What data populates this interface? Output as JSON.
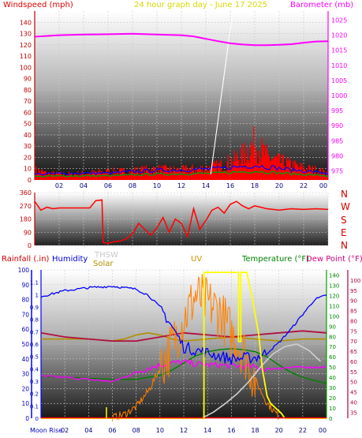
{
  "header": {
    "left_title": "Windspeed (mph)",
    "center_title": "24 hour graph day - June 17 2025",
    "right_title": "Barometer (mb)"
  },
  "direction_letters": [
    "N",
    "W",
    "S",
    "E",
    "N"
  ],
  "bottom_header": {
    "rainfall": "Rainfall (.in)",
    "humidity": "Humidity",
    "thsw": "THSW",
    "solar": "Solar",
    "uv": "UV",
    "temperature": "Temperature (°F)",
    "dewpoint": "Dew Point (°F)"
  },
  "moon_label": "Moon Rise",
  "colors": {
    "wind": "#ff0000",
    "gust": "#0000ff",
    "green": "#00a000",
    "barometer": "#ff00ff",
    "direction": "#ff0000",
    "humidity": "#0000ff",
    "temperature": "#008000",
    "dewpoint": "#ff00ff",
    "solar": "#ff8000",
    "uv": "#ffff00",
    "thsw": "#b01040",
    "moon": "#d0d0d0",
    "olive": "#b09000"
  },
  "chart_data": [
    {
      "type": "line",
      "name": "wind",
      "x_ticks": [
        "02",
        "04",
        "06",
        "08",
        "10",
        "12",
        "14",
        "16",
        "18",
        "20",
        "22",
        "00"
      ],
      "left_axis": {
        "label": "Windspeed (mph)",
        "range": [
          0,
          150
        ],
        "ticks": [
          "0",
          "10",
          "20",
          "30",
          "40",
          "50",
          "60",
          "70",
          "80",
          "90",
          "100",
          "110",
          "120",
          "130",
          "140"
        ]
      },
      "right_axis": {
        "label": "Barometer (mb)",
        "range": [
          972,
          1028
        ],
        "ticks": [
          "975",
          "980",
          "985",
          "990",
          "995",
          "1000",
          "1005",
          "1010",
          "1015",
          "1020",
          "1025"
        ]
      },
      "barometer": {
        "x": [
          0,
          2,
          4,
          6,
          8,
          10,
          12,
          13,
          14,
          15,
          16,
          17,
          18,
          19,
          20,
          21,
          22,
          23,
          24
        ],
        "y": [
          1019.5,
          1020,
          1020.2,
          1020.3,
          1020.5,
          1020.2,
          1020,
          1019.6,
          1018.8,
          1018,
          1017.3,
          1016.9,
          1016.7,
          1016.7,
          1016.8,
          1017,
          1017.5,
          1017.9,
          1018
        ]
      },
      "wind_speed_envelope": {
        "x": [
          0,
          1,
          2,
          3,
          4,
          5,
          6,
          7,
          8,
          9,
          10,
          11,
          12,
          13,
          14,
          15,
          16,
          17,
          18,
          19,
          20,
          21,
          22,
          23,
          24
        ],
        "y": [
          12,
          8,
          7,
          7,
          8,
          9,
          10,
          10,
          11,
          12,
          13,
          12,
          12,
          13,
          14,
          17,
          22,
          30,
          45,
          28,
          22,
          18,
          14,
          12,
          8
        ]
      },
      "gust_band": {
        "x": [
          0,
          3,
          6,
          9,
          12,
          15,
          18,
          21,
          24
        ],
        "y": [
          5,
          6,
          6,
          8,
          9,
          10,
          13,
          9,
          6
        ]
      }
    },
    {
      "type": "line",
      "name": "wind_direction",
      "left_axis": {
        "range": [
          0,
          360
        ],
        "ticks": [
          "0",
          "90",
          "180",
          "270",
          "360"
        ]
      },
      "x": [
        0,
        0.5,
        1,
        1.5,
        2,
        2.5,
        3,
        3.5,
        4,
        4.5,
        5,
        5.5,
        5.6,
        6,
        6.5,
        7,
        7.5,
        8,
        8.5,
        9,
        9.5,
        10,
        10.5,
        11,
        11.5,
        12,
        12.5,
        13,
        13.5,
        14,
        14.5,
        15,
        15.5,
        16,
        16.5,
        17,
        17.5,
        18,
        19,
        20,
        21,
        22,
        23,
        24
      ],
      "y": [
        300,
        240,
        260,
        250,
        255,
        255,
        255,
        255,
        255,
        255,
        305,
        310,
        20,
        15,
        25,
        30,
        45,
        80,
        150,
        110,
        70,
        120,
        190,
        90,
        180,
        150,
        60,
        250,
        110,
        170,
        240,
        260,
        220,
        280,
        300,
        270,
        250,
        270,
        250,
        240,
        250,
        245,
        250,
        245
      ]
    },
    {
      "type": "line",
      "name": "environment",
      "left_axis": {
        "label": "Rainfall (.in)",
        "range": [
          0,
          1.2
        ],
        "ticks": [
          "0",
          "0.1",
          "0.2",
          "0.3",
          "0.4",
          "0.5",
          "0.6",
          "0.7",
          "0.8",
          "0.9",
          "1",
          "1.1"
        ]
      },
      "humidity_axis": {
        "label": "Humidity",
        "range": [
          0,
          100
        ],
        "ticks": [
          "0",
          "10",
          "20",
          "30",
          "40",
          "50",
          "60",
          "70",
          "80",
          "90",
          "100"
        ]
      },
      "temp_axis": {
        "label": "Temperature (°F)",
        "range": [
          0,
          145
        ],
        "ticks": [
          "0",
          "10",
          "20",
          "30",
          "40",
          "50",
          "60",
          "70",
          "80",
          "90",
          "100",
          "110",
          "120",
          "130",
          "140"
        ]
      },
      "dew_axis": {
        "label": "Dew Point (°F)",
        "range": [
          32,
          105
        ],
        "ticks": [
          "35",
          "40",
          "45",
          "50",
          "55",
          "60",
          "65",
          "70",
          "75",
          "80",
          "85",
          "90",
          "95",
          "100"
        ]
      },
      "humidity": {
        "x": [
          0,
          2,
          4,
          6,
          7,
          8,
          9,
          10,
          11,
          12,
          13,
          14,
          16,
          18,
          19,
          20,
          21,
          22,
          23,
          24
        ],
        "y": [
          82,
          86,
          88,
          89,
          88,
          87,
          83,
          75,
          62,
          48,
          46,
          44,
          40,
          41,
          44,
          51,
          60,
          70,
          80,
          83
        ]
      },
      "temperature": {
        "x": [
          0,
          2,
          4,
          6,
          8,
          10,
          11,
          12,
          13,
          14,
          15,
          16,
          17,
          18,
          19,
          20,
          21,
          22,
          24
        ],
        "y": [
          41,
          40,
          39,
          38,
          38,
          42,
          47,
          54,
          61,
          65,
          67,
          68,
          67,
          65,
          60,
          52,
          45,
          40,
          34
        ]
      },
      "dewpoint": {
        "x": [
          0,
          2,
          4,
          6,
          7,
          8,
          9,
          10,
          11,
          12,
          13,
          14,
          15,
          16,
          17,
          18,
          19,
          20,
          22,
          24
        ],
        "y": [
          41,
          40,
          38,
          36,
          40,
          45,
          49,
          52,
          54,
          55,
          53,
          52,
          52,
          51,
          51,
          50,
          48,
          49,
          50,
          50
        ]
      },
      "thsw": {
        "x": [
          0,
          2,
          4,
          6,
          8,
          10,
          12,
          14,
          16,
          18,
          20,
          22,
          24
        ],
        "y": [
          74,
          72,
          71,
          70,
          70,
          72,
          74,
          73,
          72,
          73,
          74,
          75,
          74
        ]
      },
      "olive_temp": {
        "x": [
          0,
          4,
          6,
          7,
          8,
          9,
          10,
          11,
          12,
          14,
          16,
          18,
          20,
          22,
          24
        ],
        "y": [
          71,
          71,
          70,
          71,
          73,
          74,
          73,
          71,
          70,
          71,
          72,
          71,
          70,
          71,
          71
        ]
      },
      "solar": {
        "x": [
          6,
          7,
          8,
          9,
          10,
          11,
          12,
          13,
          14,
          15,
          16,
          17,
          18,
          19,
          20
        ],
        "y": [
          1,
          5,
          15,
          35,
          65,
          95,
          130,
          160,
          150,
          140,
          110,
          90,
          50,
          20,
          2
        ]
      },
      "uv": {
        "x": [
          0,
          13.7,
          13.7,
          16.6,
          16.6,
          16.8,
          16.8,
          17.3,
          17.8,
          18.3,
          18.6,
          19,
          19.3,
          20.2,
          20.5,
          24
        ],
        "y": [
          0,
          0,
          1.18,
          1.18,
          0.62,
          0.62,
          1.18,
          1.18,
          0.95,
          0.68,
          0.4,
          0.18,
          0.12,
          0.04,
          0,
          0
        ]
      },
      "moon": {
        "x": [
          13.5,
          14.5,
          15.5,
          16.5,
          17.5,
          18.5,
          19.5,
          20.5,
          21.5,
          22.5,
          23.5
        ],
        "y": [
          0,
          0.05,
          0.12,
          0.2,
          0.3,
          0.42,
          0.52,
          0.58,
          0.6,
          0.55,
          0.46
        ]
      }
    }
  ]
}
